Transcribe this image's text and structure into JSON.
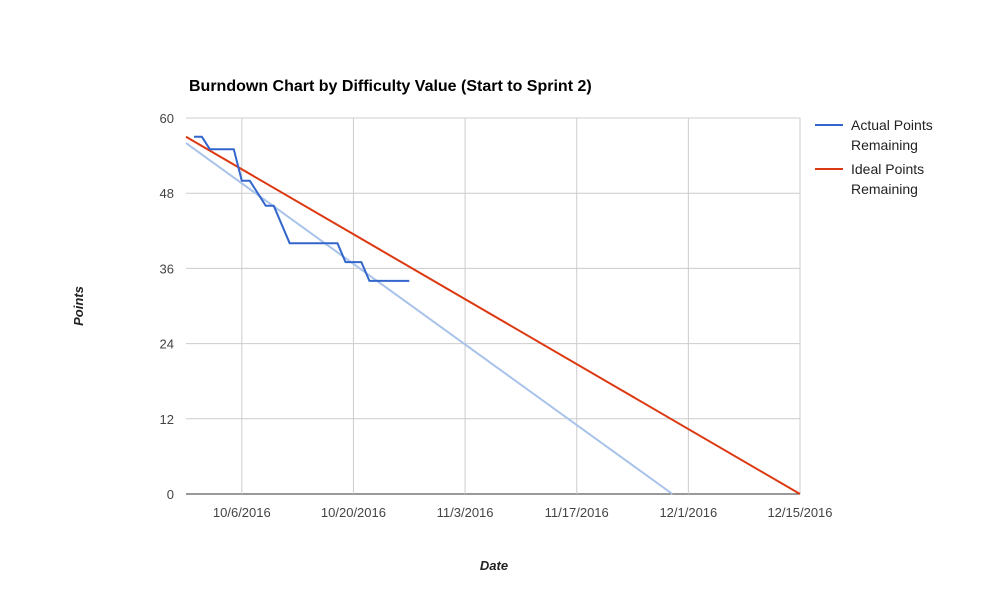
{
  "chart_data": {
    "type": "line",
    "title": "Burndown Chart by Difficulty Value (Start to Sprint 2)",
    "xlabel": "Date",
    "ylabel": "Points",
    "ylim": [
      0,
      60
    ],
    "xlim": [
      "2016-09-29",
      "2016-12-15"
    ],
    "y_ticks": [
      0,
      12,
      24,
      36,
      48,
      60
    ],
    "x_ticks": [
      {
        "date": "2016-10-06",
        "label": "10/6/2016"
      },
      {
        "date": "2016-10-20",
        "label": "10/20/2016"
      },
      {
        "date": "2016-11-03",
        "label": "11/3/2016"
      },
      {
        "date": "2016-11-17",
        "label": "11/17/2016"
      },
      {
        "date": "2016-12-01",
        "label": "12/1/2016"
      },
      {
        "date": "2016-12-15",
        "label": "12/15/2016"
      }
    ],
    "grid": true,
    "legend_position": "right",
    "series": [
      {
        "name": "Actual Points Remaining",
        "color": "#3366cc",
        "points": [
          {
            "x": "2016-09-30",
            "y": 57
          },
          {
            "x": "2016-10-01",
            "y": 57
          },
          {
            "x": "2016-10-02",
            "y": 55
          },
          {
            "x": "2016-10-03",
            "y": 55
          },
          {
            "x": "2016-10-05",
            "y": 55
          },
          {
            "x": "2016-10-06",
            "y": 50
          },
          {
            "x": "2016-10-07",
            "y": 50
          },
          {
            "x": "2016-10-09",
            "y": 46
          },
          {
            "x": "2016-10-10",
            "y": 46
          },
          {
            "x": "2016-10-12",
            "y": 40
          },
          {
            "x": "2016-10-18",
            "y": 40
          },
          {
            "x": "2016-10-19",
            "y": 37
          },
          {
            "x": "2016-10-21",
            "y": 37
          },
          {
            "x": "2016-10-22",
            "y": 34
          },
          {
            "x": "2016-10-27",
            "y": 34
          }
        ]
      },
      {
        "name": "Ideal Points Remaining",
        "color": "#dc3912",
        "points": [
          {
            "x": "2016-09-29",
            "y": 57
          },
          {
            "x": "2016-12-15",
            "y": 0
          }
        ]
      }
    ],
    "trendline": {
      "color": "#a9c3ea",
      "points": [
        {
          "x": "2016-09-29",
          "y": 56
        },
        {
          "x": "2016-11-29",
          "y": 0
        }
      ]
    }
  }
}
